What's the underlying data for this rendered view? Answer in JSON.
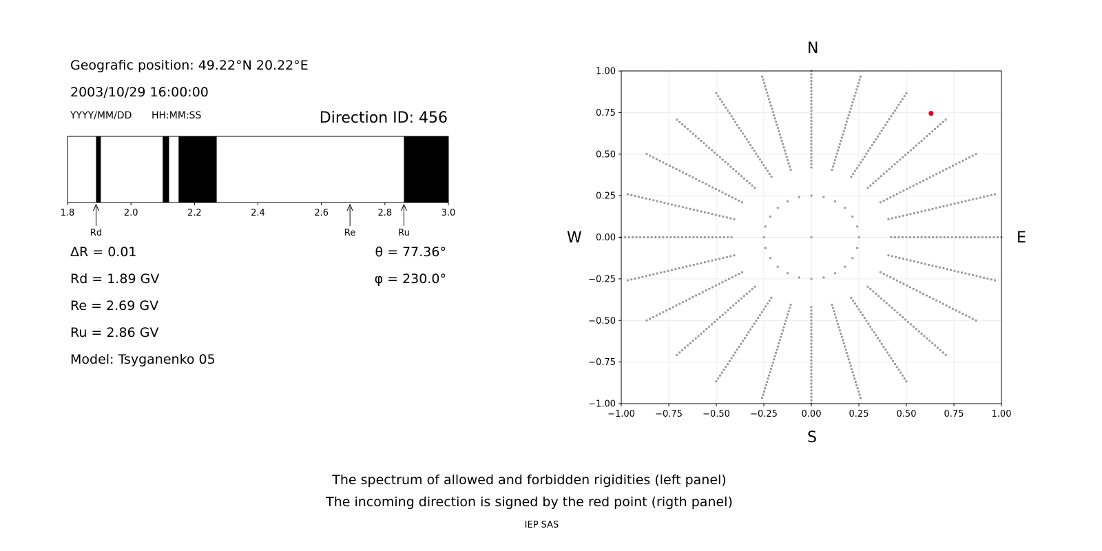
{
  "left_panel": {
    "position_line": "Geografic position: 49.22°N 20.22°E",
    "datetime": "2003/10/29 16:00:00",
    "date_format": "YYYY/MM/DD",
    "time_format": "HH:MM:SS",
    "direction_id": "Direction ID: 456",
    "delta_r": "ΔR = 0.01",
    "rd": "Rd = 1.89 GV",
    "re": "Re = 2.69 GV",
    "ru": "Ru = 2.86 GV",
    "model": "Model: Tsyganenko 05",
    "theta": "θ = 77.36°",
    "phi": "φ = 230.0°"
  },
  "compass": {
    "north": "N",
    "south": "S",
    "west": "W",
    "east": "E"
  },
  "footer": {
    "caption_line1": "The spectrum of allowed and forbidden rigidities (left panel)",
    "caption_line2": "The incoming direction is signed by the red point (rigth panel)",
    "credit": "IEP SAS"
  },
  "colors": {
    "forbidden": "#000000",
    "points": "#999999",
    "highlight": "#e8001a"
  },
  "chart_data": [
    {
      "type": "bar",
      "title": "",
      "xlim": [
        1.8,
        3.0
      ],
      "xticks": [
        1.8,
        2.0,
        2.2,
        2.4,
        2.6,
        2.8,
        3.0
      ],
      "xtick_labels": [
        "1.8",
        "2.0",
        "2.2",
        "2.4",
        "2.6",
        "2.8",
        "3.0"
      ],
      "forbidden_bands": [
        [
          1.89,
          1.905
        ],
        [
          2.1,
          2.12
        ],
        [
          2.15,
          2.27
        ],
        [
          2.86,
          3.0
        ]
      ],
      "markers": [
        {
          "label": "Rd",
          "value": 1.89
        },
        {
          "label": "Re",
          "value": 2.69
        },
        {
          "label": "Ru",
          "value": 2.86
        }
      ]
    },
    {
      "type": "scatter",
      "title": "",
      "xlim": [
        -1.0,
        1.0
      ],
      "ylim": [
        -1.0,
        1.0
      ],
      "xticks": [
        -1.0,
        -0.75,
        -0.5,
        -0.25,
        0.0,
        0.25,
        0.5,
        0.75,
        1.0
      ],
      "yticks": [
        -1.0,
        -0.75,
        -0.5,
        -0.25,
        0.0,
        0.25,
        0.5,
        0.75,
        1.0
      ],
      "xtick_labels": [
        "−1.00",
        "−0.75",
        "−0.50",
        "−0.25",
        "0.00",
        "0.25",
        "0.50",
        "0.75",
        "1.00"
      ],
      "ytick_labels": [
        "−1.00",
        "−0.75",
        "−0.50",
        "−0.25",
        "0.00",
        "0.25",
        "0.50",
        "0.75",
        "1.00"
      ],
      "grid": true,
      "rays": {
        "count": 24,
        "start_radius": 0.42,
        "end_radius": 1.0,
        "step": 0.02
      },
      "circle": {
        "radius": 0.25,
        "count": 24
      },
      "highlight_point": {
        "x": 0.63,
        "y": 0.745
      }
    }
  ]
}
